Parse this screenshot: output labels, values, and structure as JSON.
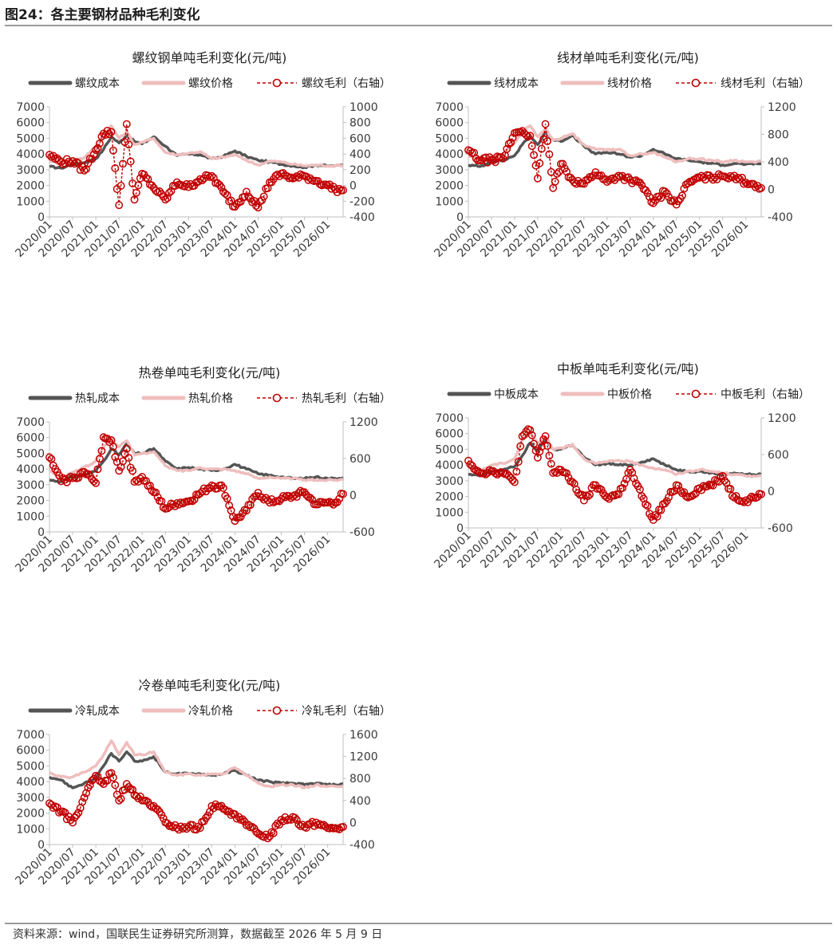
{
  "figure_title": "图24：各主要钢材品种毛利变化",
  "source_note": "资料来源：wind，国联民生证券研究所测算，数据截至 2026 年 5 月 9 日",
  "colors": {
    "cost": "#555555",
    "price": "#efbdbd",
    "margin": "#c00000"
  },
  "chart_data": [
    {
      "type": "line",
      "title": "螺纹钢单吨毛利变化(元/吨)",
      "x_ticks": [
        "2020/01",
        "2020/07",
        "2021/01",
        "2021/07",
        "2022/01",
        "2022/07",
        "2023/01",
        "2023/07",
        "2024/01",
        "2024/07",
        "2025/01",
        "2025/07",
        "2026/01"
      ],
      "xlim": [
        "2020/01",
        "2026/05"
      ],
      "ylim_left": [
        0,
        7000
      ],
      "y_ticks_left": [
        0,
        1000,
        2000,
        3000,
        4000,
        5000,
        6000,
        7000
      ],
      "ylim_right": [
        -400,
        1000
      ],
      "y_ticks_right": [
        -400,
        -200,
        0,
        200,
        400,
        600,
        800,
        1000
      ],
      "legend_position": "top",
      "legend_suffix": "（右轴）",
      "dates": [
        "2020/01",
        "2020/04",
        "2020/07",
        "2020/10",
        "2021/01",
        "2021/03",
        "2021/05",
        "2021/07",
        "2021/09",
        "2021/11",
        "2022/01",
        "2022/04",
        "2022/07",
        "2022/10",
        "2023/01",
        "2023/04",
        "2023/07",
        "2023/10",
        "2024/01",
        "2024/04",
        "2024/07",
        "2024/10",
        "2025/01",
        "2025/04",
        "2025/07",
        "2025/10",
        "2026/01",
        "2026/03",
        "2026/05"
      ],
      "series": [
        {
          "name": "螺纹成本",
          "axis": "left",
          "values": [
            3200,
            3100,
            3350,
            3450,
            3700,
            4300,
            5100,
            4700,
            5200,
            4800,
            4650,
            5100,
            4500,
            3900,
            4000,
            3950,
            3700,
            3850,
            4200,
            3850,
            3600,
            3500,
            3350,
            3250,
            3150,
            3300,
            3250,
            3250,
            3300
          ]
        },
        {
          "name": "螺纹价格",
          "axis": "left",
          "values": [
            3600,
            3350,
            3650,
            3750,
            4500,
            5000,
            5800,
            5000,
            5400,
            4600,
            4750,
            5000,
            4100,
            3950,
            4050,
            4150,
            3700,
            3800,
            3950,
            3600,
            3300,
            3550,
            3500,
            3350,
            3250,
            3300,
            3250,
            3250,
            3300
          ]
        },
        {
          "name": "螺纹毛利",
          "axis": "right",
          "values": [
            390,
            300,
            310,
            190,
            450,
            660,
            680,
            -250,
            780,
            -180,
            150,
            -30,
            -180,
            40,
            -20,
            80,
            120,
            -80,
            -270,
            -80,
            -280,
            40,
            150,
            90,
            120,
            60,
            0,
            -50,
            -60
          ]
        }
      ]
    },
    {
      "type": "line",
      "title": "线材单吨毛利变化(元/吨)",
      "x_ticks": [
        "2020/01",
        "2020/07",
        "2021/01",
        "2021/07",
        "2022/01",
        "2022/07",
        "2023/01",
        "2023/07",
        "2024/01",
        "2024/07",
        "2025/01",
        "2025/07",
        "2026/01"
      ],
      "xlim": [
        "2020/01",
        "2026/05"
      ],
      "ylim_left": [
        0,
        7000
      ],
      "y_ticks_left": [
        0,
        1000,
        2000,
        3000,
        4000,
        5000,
        6000,
        7000
      ],
      "ylim_right": [
        -400,
        1200
      ],
      "y_ticks_right": [
        -400,
        0,
        400,
        800,
        1200
      ],
      "legend_position": "top",
      "legend_suffix": "（右轴）",
      "dates": [
        "2020/01",
        "2020/04",
        "2020/07",
        "2020/10",
        "2021/01",
        "2021/03",
        "2021/05",
        "2021/07",
        "2021/09",
        "2021/11",
        "2022/01",
        "2022/04",
        "2022/07",
        "2022/10",
        "2023/01",
        "2023/04",
        "2023/07",
        "2023/10",
        "2024/01",
        "2024/04",
        "2024/07",
        "2024/10",
        "2025/01",
        "2025/04",
        "2025/07",
        "2025/10",
        "2026/01",
        "2026/03",
        "2026/05"
      ],
      "series": [
        {
          "name": "线材成本",
          "axis": "left",
          "values": [
            3300,
            3200,
            3500,
            3600,
            3900,
            4600,
            5100,
            4600,
            5400,
            4900,
            4800,
            5200,
            4500,
            4000,
            4100,
            4000,
            3800,
            3900,
            4300,
            4000,
            3700,
            3600,
            3500,
            3400,
            3300,
            3400,
            3350,
            3350,
            3400
          ]
        },
        {
          "name": "线材价格",
          "axis": "left",
          "values": [
            3900,
            3600,
            3900,
            4000,
            4700,
            5400,
            5800,
            5100,
            5600,
            4900,
            5000,
            5300,
            4600,
            4300,
            4300,
            4300,
            3900,
            4000,
            4100,
            3800,
            3500,
            3700,
            3700,
            3600,
            3500,
            3600,
            3500,
            3500,
            3550
          ]
        },
        {
          "name": "线材毛利",
          "axis": "right",
          "values": [
            570,
            420,
            430,
            450,
            820,
            850,
            780,
            160,
            950,
            20,
            370,
            140,
            80,
            250,
            110,
            200,
            140,
            60,
            -200,
            -30,
            -220,
            90,
            170,
            170,
            190,
            200,
            100,
            80,
            20
          ]
        }
      ]
    },
    {
      "type": "line",
      "title": "热卷单吨毛利变化(元/吨)",
      "x_ticks": [
        "2020/01",
        "2020/07",
        "2021/01",
        "2021/07",
        "2022/01",
        "2022/07",
        "2023/01",
        "2023/07",
        "2024/01",
        "2024/07",
        "2025/01",
        "2025/07",
        "2026/01"
      ],
      "xlim": [
        "2020/01",
        "2026/05"
      ],
      "ylim_left": [
        0,
        7000
      ],
      "y_ticks_left": [
        0,
        1000,
        2000,
        3000,
        4000,
        5000,
        6000,
        7000
      ],
      "ylim_right": [
        -600,
        1200
      ],
      "y_ticks_right": [
        -600,
        0,
        600,
        1200
      ],
      "legend_position": "top",
      "legend_suffix": "（右轴）",
      "dates": [
        "2020/01",
        "2020/04",
        "2020/07",
        "2020/10",
        "2021/01",
        "2021/03",
        "2021/05",
        "2021/07",
        "2021/09",
        "2021/11",
        "2022/01",
        "2022/04",
        "2022/07",
        "2022/10",
        "2023/01",
        "2023/04",
        "2023/07",
        "2023/10",
        "2024/01",
        "2024/04",
        "2024/07",
        "2024/10",
        "2025/01",
        "2025/04",
        "2025/07",
        "2025/10",
        "2026/01",
        "2026/03",
        "2026/05"
      ],
      "series": [
        {
          "name": "热轧成本",
          "axis": "left",
          "values": [
            3300,
            3200,
            3500,
            3600,
            3900,
            4500,
            5300,
            4900,
            5600,
            5000,
            5000,
            5300,
            4500,
            4000,
            4100,
            4000,
            3900,
            4000,
            4300,
            4000,
            3700,
            3600,
            3500,
            3400,
            3400,
            3500,
            3400,
            3400,
            3450
          ]
        },
        {
          "name": "热轧价格",
          "axis": "left",
          "values": [
            3900,
            3400,
            3800,
            4100,
            4500,
            5400,
            6000,
            5400,
            5800,
            4900,
            5000,
            5100,
            4200,
            3900,
            3900,
            4100,
            4000,
            4000,
            3900,
            3700,
            3400,
            3500,
            3400,
            3400,
            3300,
            3300,
            3300,
            3300,
            3350
          ]
        },
        {
          "name": "热轧毛利",
          "axis": "right",
          "values": [
            620,
            230,
            280,
            380,
            200,
            950,
            900,
            400,
            760,
            220,
            300,
            50,
            -220,
            -130,
            -100,
            30,
            160,
            120,
            -420,
            -250,
            40,
            -120,
            -60,
            -20,
            50,
            -150,
            -120,
            -120,
            20
          ]
        }
      ]
    },
    {
      "type": "line",
      "title": "中板单吨毛利变化(元/吨)",
      "x_ticks": [
        "2020/01",
        "2020/07",
        "2021/01",
        "2021/07",
        "2022/01",
        "2022/07",
        "2023/01",
        "2023/07",
        "2024/01",
        "2024/07",
        "2025/01",
        "2025/07",
        "2026/01"
      ],
      "xlim": [
        "2020/01",
        "2026/05"
      ],
      "ylim_left": [
        0,
        7000
      ],
      "y_ticks_left": [
        0,
        1000,
        2000,
        3000,
        4000,
        5000,
        6000,
        7000
      ],
      "ylim_right": [
        -600,
        1200
      ],
      "y_ticks_right": [
        -600,
        0,
        600,
        1200
      ],
      "legend_position": "top",
      "legend_suffix": "（右轴）",
      "dates": [
        "2020/01",
        "2020/04",
        "2020/07",
        "2020/10",
        "2021/01",
        "2021/03",
        "2021/05",
        "2021/07",
        "2021/09",
        "2021/11",
        "2022/01",
        "2022/04",
        "2022/07",
        "2022/10",
        "2023/01",
        "2023/04",
        "2023/07",
        "2023/10",
        "2024/01",
        "2024/04",
        "2024/07",
        "2024/10",
        "2025/01",
        "2025/04",
        "2025/07",
        "2025/10",
        "2026/01",
        "2026/03",
        "2026/05"
      ],
      "series": [
        {
          "name": "中板成本",
          "axis": "left",
          "values": [
            3400,
            3300,
            3600,
            3700,
            3900,
            4600,
            5400,
            4900,
            5600,
            5000,
            5000,
            5300,
            4500,
            4000,
            4100,
            4000,
            4000,
            4200,
            4400,
            4000,
            3700,
            3600,
            3600,
            3500,
            3400,
            3500,
            3400,
            3400,
            3400
          ]
        },
        {
          "name": "中板价格",
          "axis": "left",
          "values": [
            4000,
            3600,
            4000,
            4100,
            4400,
            5600,
            6000,
            5400,
            5800,
            5000,
            5100,
            5300,
            4400,
            4100,
            4200,
            4300,
            4200,
            4000,
            3800,
            3700,
            3400,
            3600,
            3700,
            3600,
            3500,
            3400,
            3300,
            3300,
            3350
          ]
        },
        {
          "name": "中板毛利",
          "axis": "right",
          "values": [
            500,
            300,
            330,
            300,
            150,
            900,
            1000,
            550,
            900,
            300,
            350,
            150,
            -150,
            100,
            -100,
            -50,
            350,
            -80,
            -470,
            -200,
            100,
            -100,
            50,
            100,
            250,
            -100,
            -150,
            -100,
            -50
          ]
        }
      ]
    },
    {
      "type": "line",
      "title": "冷卷单吨毛利变化(元/吨)",
      "x_ticks": [
        "2020/01",
        "2020/07",
        "2021/01",
        "2021/07",
        "2022/01",
        "2022/07",
        "2023/01",
        "2023/07",
        "2024/01",
        "2024/07",
        "2025/01",
        "2025/07",
        "2026/01"
      ],
      "xlim": [
        "2020/01",
        "2026/05"
      ],
      "ylim_left": [
        0,
        7000
      ],
      "y_ticks_left": [
        0,
        1000,
        2000,
        3000,
        4000,
        5000,
        6000,
        7000
      ],
      "ylim_right": [
        -400,
        1600
      ],
      "y_ticks_right": [
        -400,
        0,
        400,
        800,
        1200,
        1600
      ],
      "legend_position": "top",
      "legend_suffix": "（右轴）",
      "dates": [
        "2020/01",
        "2020/04",
        "2020/07",
        "2020/10",
        "2021/01",
        "2021/03",
        "2021/05",
        "2021/07",
        "2021/09",
        "2021/11",
        "2022/01",
        "2022/04",
        "2022/07",
        "2022/10",
        "2023/01",
        "2023/04",
        "2023/07",
        "2023/10",
        "2024/01",
        "2024/04",
        "2024/07",
        "2024/10",
        "2025/01",
        "2025/04",
        "2025/07",
        "2025/10",
        "2026/01",
        "2026/03",
        "2026/05"
      ],
      "series": [
        {
          "name": "冷轧成本",
          "axis": "left",
          "values": [
            4300,
            4100,
            3600,
            3900,
            4200,
            5000,
            5800,
            5300,
            5900,
            5300,
            5300,
            5600,
            4600,
            4500,
            4500,
            4500,
            4400,
            4500,
            4700,
            4400,
            4100,
            4000,
            3900,
            3900,
            3800,
            3900,
            3800,
            3800,
            3850
          ]
        },
        {
          "name": "冷轧价格",
          "axis": "left",
          "values": [
            4600,
            4300,
            4300,
            4600,
            5000,
            5700,
            6600,
            5700,
            6500,
            5700,
            5700,
            5900,
            4600,
            4400,
            4500,
            4400,
            4500,
            4500,
            4900,
            4400,
            3900,
            3700,
            3800,
            3800,
            3600,
            3800,
            3700,
            3700,
            3750
          ]
        },
        {
          "name": "冷轧毛利",
          "axis": "right",
          "values": [
            350,
            200,
            0,
            450,
            850,
            700,
            900,
            400,
            700,
            500,
            400,
            300,
            0,
            -100,
            -80,
            -100,
            300,
            250,
            150,
            -50,
            -200,
            -250,
            50,
            100,
            -80,
            0,
            -100,
            -100,
            -80
          ]
        }
      ]
    }
  ]
}
